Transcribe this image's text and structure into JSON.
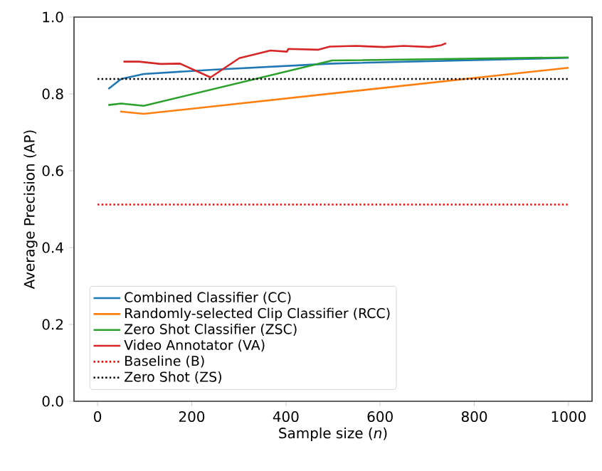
{
  "chart_data": {
    "type": "line",
    "xlabel": "Sample size (*n*)",
    "ylabel": "Average Precision (AP)",
    "xlim": [
      -50,
      1050
    ],
    "ylim": [
      0,
      1.0
    ],
    "xticks": [
      0,
      200,
      400,
      600,
      800,
      1000
    ],
    "yticks": [
      {
        "value": 0,
        "label": "0.0"
      },
      {
        "value": 0.2,
        "label": "0.2"
      },
      {
        "value": 0.4,
        "label": "0.4"
      },
      {
        "value": 0.6,
        "label": "0.6"
      },
      {
        "value": 0.8,
        "label": "0.8"
      },
      {
        "value": 1.0,
        "label": "1.0"
      }
    ],
    "grid": false,
    "legend": "bottom left",
    "marker": "none",
    "series": [
      {
        "name": "Combined Classifier (CC)",
        "color": "#1f77b4",
        "line_style": "solid",
        "x": [
          23,
          50,
          98,
          245,
          498,
          1000
        ],
        "values": [
          0.813,
          0.839,
          0.852,
          0.863,
          0.879,
          0.894
        ]
      },
      {
        "name": "Randomly-selected Clip Classifier (RCC)",
        "color": "#ff7f0e",
        "line_style": "solid",
        "x": [
          48,
          98,
          1000
        ],
        "values": [
          0.754,
          0.748,
          0.868
        ]
      },
      {
        "name": "Zero Shot Classifier (ZSC)",
        "color": "#2ca02c",
        "line_style": "solid",
        "x": [
          23,
          50,
          98,
          498,
          1000
        ],
        "values": [
          0.771,
          0.775,
          0.769,
          0.887,
          0.895
        ]
      },
      {
        "name": "Video Annotator (VA)",
        "color": "#d62728",
        "line_style": "solid",
        "x": [
          55,
          88,
          134,
          175,
          240,
          301,
          367,
          402,
          405,
          468,
          493,
          548,
          609,
          650,
          705,
          730,
          740
        ],
        "values": [
          0.884,
          0.884,
          0.878,
          0.879,
          0.843,
          0.893,
          0.913,
          0.91,
          0.917,
          0.915,
          0.923,
          0.925,
          0.922,
          0.925,
          0.922,
          0.927,
          0.932
        ]
      },
      {
        "name": "Baseline (B)",
        "color": "#ff0000",
        "line_style": "dotted",
        "x": [
          0,
          1000
        ],
        "values": [
          0.512,
          0.512
        ]
      },
      {
        "name": "Zero Shot (ZS)",
        "color": "#000000",
        "line_style": "dotted",
        "x": [
          0,
          1000
        ],
        "values": [
          0.839,
          0.839
        ]
      }
    ]
  }
}
